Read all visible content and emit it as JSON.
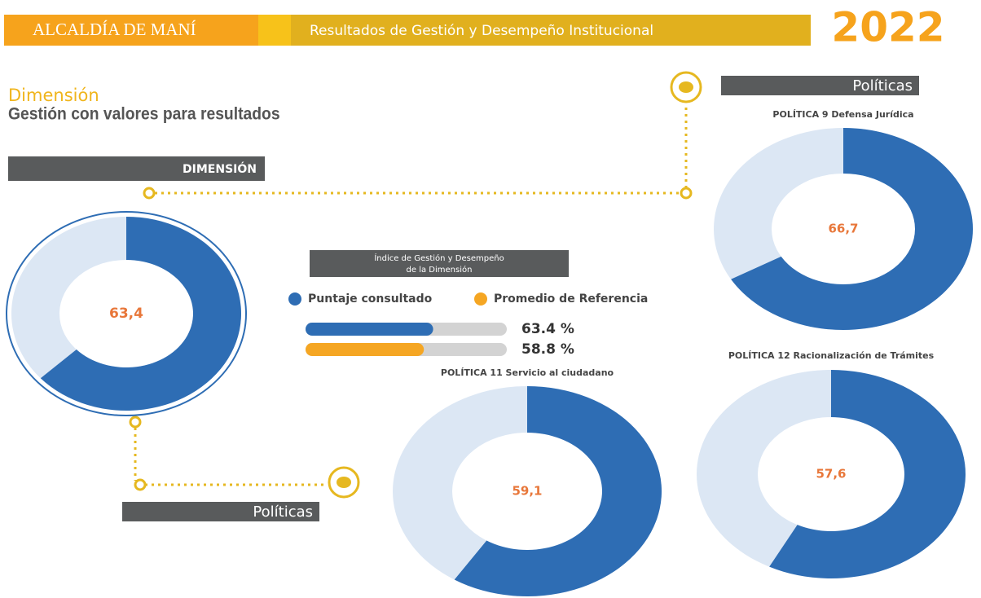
{
  "header": {
    "left": "ALCALDÍA DE MANÍ",
    "middle": "Resultados de Gestión y Desempeño Institucional",
    "year": "2022"
  },
  "dimension": {
    "label": "Dimensión",
    "title": "Gestión con valores para resultados",
    "tag": "DIMENSIÓN",
    "value": 63.4,
    "value_label": "63,4"
  },
  "index": {
    "title": [
      "Índice de Gestión y Desempeño",
      "de la Dimensión"
    ],
    "max": 100,
    "legend": [
      {
        "name": "Puntaje consultado",
        "color": "#2e6db4"
      },
      {
        "name": "Promedio de Referencia",
        "color": "#f5a623"
      }
    ],
    "bars": [
      {
        "value": 63.4,
        "label": "63.4 %"
      },
      {
        "value": 58.8,
        "label": "58.8 %"
      }
    ]
  },
  "policy_tags": [
    "Políticas",
    "Políticas"
  ],
  "policies": [
    {
      "title": "POLÍTICA 9 Defensa Jurídica",
      "value": 66.7,
      "value_label": "66,7"
    },
    {
      "title": "POLÍTICA 11 Servicio al ciudadano",
      "value": 59.1,
      "value_label": "59,1"
    },
    {
      "title": "POLÍTICA 12 Racionalización de Trámites",
      "value": 57.6,
      "value_label": "57,6"
    }
  ],
  "colors": {
    "score": "#2e6db4",
    "rest": "#dce7f4",
    "label": "#e8773a"
  }
}
